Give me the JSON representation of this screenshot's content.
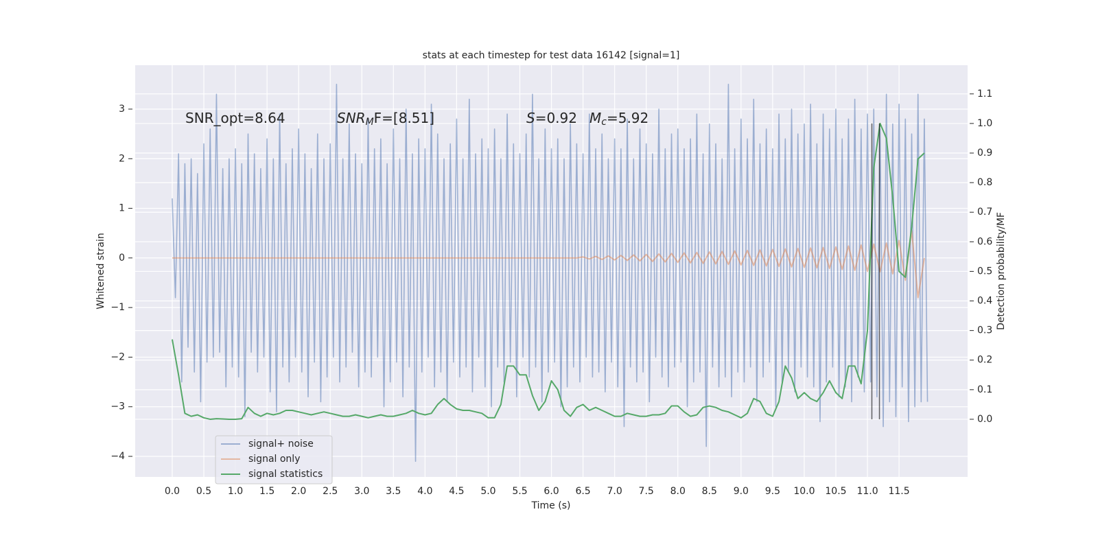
{
  "chart_data": {
    "type": "line",
    "title": "stats at each timestep for test data 16142 [signal=1]",
    "xlabel": "Time (s)",
    "ylabel": "Whitened strain",
    "y2label": "Detection probability/MF",
    "annotations": [
      [
        "SNR_opt=8.64"
      ],
      [
        "SNR",
        "M",
        "F=[8.51]"
      ],
      [
        "S",
        "=0.92"
      ],
      [
        "M",
        "c",
        "=5.92"
      ]
    ],
    "xlim": [
      -0.586,
      12.585
    ],
    "ylim": [
      -4.415,
      3.885
    ],
    "y2lim": [
      -0.195,
      1.197
    ],
    "xticks": [
      {
        "value": 0,
        "label": "0.0"
      },
      0.5,
      {
        "value": 1,
        "label": "1.0"
      },
      1.5,
      {
        "value": 2,
        "label": "2.0"
      },
      2.5,
      {
        "value": 3,
        "label": "3.0"
      },
      3.5,
      {
        "value": 4,
        "label": "4.0"
      },
      4.5,
      {
        "value": 5,
        "label": "5.0"
      },
      5.5,
      {
        "value": 6,
        "label": "6.0"
      },
      6.5,
      {
        "value": 7,
        "label": "7.0"
      },
      7.5,
      {
        "value": 8,
        "label": "8.0"
      },
      8.5,
      {
        "value": 9,
        "label": "9.0"
      },
      9.5,
      {
        "value": 10,
        "label": "10.0"
      },
      10.5,
      {
        "value": 11,
        "label": "11.0"
      },
      11.5
    ],
    "yticks": [
      {
        "value": -4,
        "label": "−4"
      },
      {
        "value": -3,
        "label": "−3"
      },
      {
        "value": -2,
        "label": "−2"
      },
      {
        "value": -1,
        "label": "−1"
      },
      0,
      1,
      2,
      3
    ],
    "y2ticks": [
      {
        "value": 0,
        "label": "0.0"
      },
      0.1,
      0.2,
      0.3,
      0.4,
      0.5,
      0.6,
      0.7,
      0.8,
      0.9,
      {
        "value": 1,
        "label": "1.0"
      },
      1.1
    ],
    "grid": true,
    "legend": "lower left",
    "vlines": [
      11.07,
      11.19
    ],
    "series": [
      {
        "name": "signal+ noise",
        "color": "#4c72b0",
        "x": [
          0,
          0.05,
          0.1,
          0.15,
          0.2,
          0.25,
          0.3,
          0.35,
          0.4,
          0.45,
          0.5,
          0.55,
          0.6,
          0.65,
          0.7,
          0.75,
          0.8,
          0.85,
          0.9,
          0.95,
          1,
          1.05,
          1.1,
          1.15,
          1.2,
          1.25,
          1.3,
          1.35,
          1.4,
          1.45,
          1.5,
          1.55,
          1.6,
          1.65,
          1.7,
          1.75,
          1.8,
          1.85,
          1.9,
          1.95,
          2,
          2.05,
          2.1,
          2.15,
          2.2,
          2.25,
          2.3,
          2.35,
          2.4,
          2.45,
          2.5,
          2.55,
          2.6,
          2.65,
          2.7,
          2.75,
          2.8,
          2.85,
          2.9,
          2.95,
          3,
          3.05,
          3.1,
          3.15,
          3.2,
          3.25,
          3.3,
          3.35,
          3.4,
          3.45,
          3.5,
          3.55,
          3.6,
          3.65,
          3.7,
          3.75,
          3.8,
          3.85,
          3.9,
          3.95,
          4,
          4.05,
          4.1,
          4.15,
          4.2,
          4.25,
          4.3,
          4.35,
          4.4,
          4.45,
          4.5,
          4.55,
          4.6,
          4.65,
          4.7,
          4.75,
          4.8,
          4.85,
          4.9,
          4.95,
          5,
          5.05,
          5.1,
          5.15,
          5.2,
          5.25,
          5.3,
          5.35,
          5.4,
          5.45,
          5.5,
          5.55,
          5.6,
          5.65,
          5.7,
          5.75,
          5.8,
          5.85,
          5.9,
          5.95,
          6,
          6.05,
          6.1,
          6.15,
          6.2,
          6.25,
          6.3,
          6.35,
          6.4,
          6.45,
          6.5,
          6.55,
          6.6,
          6.65,
          6.7,
          6.75,
          6.8,
          6.85,
          6.9,
          6.95,
          7,
          7.05,
          7.1,
          7.15,
          7.2,
          7.25,
          7.3,
          7.35,
          7.4,
          7.45,
          7.5,
          7.55,
          7.6,
          7.65,
          7.7,
          7.75,
          7.8,
          7.85,
          7.9,
          7.95,
          8,
          8.05,
          8.1,
          8.15,
          8.2,
          8.25,
          8.3,
          8.35,
          8.4,
          8.45,
          8.5,
          8.55,
          8.6,
          8.65,
          8.7,
          8.75,
          8.8,
          8.85,
          8.9,
          8.95,
          9,
          9.05,
          9.1,
          9.15,
          9.2,
          9.25,
          9.3,
          9.35,
          9.4,
          9.45,
          9.5,
          9.55,
          9.6,
          9.65,
          9.7,
          9.75,
          9.8,
          9.85,
          9.9,
          9.95,
          10,
          10.05,
          10.1,
          10.15,
          10.2,
          10.25,
          10.3,
          10.35,
          10.4,
          10.45,
          10.5,
          10.55,
          10.6,
          10.65,
          10.7,
          10.75,
          10.8,
          10.85,
          10.9,
          10.95,
          11,
          11.05,
          11.1,
          11.15,
          11.2,
          11.25,
          11.3,
          11.35,
          11.4,
          11.45,
          11.5,
          11.55,
          11.6,
          11.65,
          11.7,
          11.75,
          11.8,
          11.85,
          11.9,
          11.95
        ],
        "values": [
          1.2,
          -0.8,
          2.1,
          -2.5,
          1.9,
          -1.8,
          2.0,
          -2.3,
          1.7,
          -2.9,
          2.3,
          -2.1,
          2.6,
          -2.0,
          3.3,
          -1.9,
          1.8,
          -2.6,
          2.0,
          -2.2,
          2.2,
          -2.4,
          1.9,
          -3.2,
          2.5,
          -1.9,
          2.1,
          -2.3,
          1.8,
          -2.0,
          2.4,
          -2.7,
          2.0,
          -3.1,
          2.9,
          -2.2,
          1.9,
          -2.5,
          2.2,
          -2.0,
          2.6,
          -2.3,
          2.1,
          -2.8,
          1.8,
          -2.1,
          2.5,
          -2.9,
          2.0,
          -2.4,
          2.3,
          -2.0,
          3.5,
          -2.5,
          2.0,
          -2.2,
          2.7,
          -1.9,
          2.1,
          -2.6,
          1.9,
          -2.3,
          2.8,
          -2.4,
          2.2,
          -2.0,
          2.4,
          -3.0,
          1.9,
          -2.5,
          2.6,
          -2.1,
          2.0,
          -2.8,
          3.0,
          -2.2,
          2.1,
          -4.1,
          2.4,
          -2.3,
          2.2,
          -2.0,
          3.1,
          -2.6,
          2.5,
          -2.3,
          2.0,
          -2.9,
          2.3,
          -2.1,
          2.8,
          -2.4,
          2.0,
          -2.2,
          3.2,
          -2.7,
          2.1,
          -2.0,
          2.4,
          -2.6,
          2.2,
          -3.0,
          2.6,
          -2.2,
          2.0,
          -2.5,
          2.9,
          -2.1,
          2.3,
          -2.8,
          2.1,
          -2.0,
          2.5,
          -2.4,
          3.3,
          -2.2,
          2.0,
          -2.9,
          2.6,
          -2.3,
          2.2,
          -2.1,
          2.4,
          -3.0,
          2.0,
          -2.6,
          2.7,
          -2.2,
          2.3,
          -2.5,
          2.1,
          -2.0,
          2.9,
          -2.4,
          2.2,
          -2.3,
          2.5,
          -2.7,
          2.0,
          -2.1,
          2.4,
          -2.6,
          2.2,
          -3.4,
          2.8,
          -2.2,
          2.0,
          -2.5,
          2.6,
          -2.3,
          2.3,
          -2.9,
          2.1,
          -2.0,
          3.0,
          -2.4,
          2.2,
          -2.6,
          2.5,
          -2.2,
          2.6,
          -2.1,
          2.2,
          -3.0,
          2.4,
          -2.5,
          2.9,
          -2.3,
          2.1,
          -3.8,
          2.7,
          -2.2,
          2.3,
          -2.6,
          2.0,
          -2.4,
          3.5,
          -2.8,
          2.2,
          -2.3,
          2.8,
          -2.5,
          2.4,
          -2.2,
          3.2,
          -2.9,
          2.3,
          -2.4,
          2.6,
          -2.1,
          2.2,
          -3.0,
          2.9,
          -2.5,
          2.4,
          -2.3,
          3.0,
          -2.7,
          2.5,
          -2.2,
          2.7,
          -2.4,
          3.1,
          -2.6,
          2.3,
          -3.3,
          2.9,
          -2.5,
          2.6,
          -2.2,
          3.0,
          -2.8,
          2.4,
          -2.6,
          2.8,
          -2.9,
          3.2,
          -2.4,
          2.6,
          -2.7,
          2.9,
          -2.5,
          3.0,
          -2.8,
          2.6,
          -3.4,
          3.3,
          -2.9,
          2.7,
          -3.2,
          3.1,
          -2.6,
          2.8,
          -3.3,
          2.5,
          -3.0,
          3.3,
          -2.9,
          2.8,
          -2.9
        ]
      },
      {
        "name": "signal only",
        "color": "#dd8452",
        "x": [
          0,
          0.1,
          0.2,
          0.3,
          0.4,
          0.5,
          0.6,
          0.7,
          0.8,
          0.9,
          1,
          1.1,
          1.2,
          1.3,
          1.4,
          1.5,
          1.6,
          1.7,
          1.8,
          1.9,
          2,
          2.1,
          2.2,
          2.3,
          2.4,
          2.5,
          2.6,
          2.7,
          2.8,
          2.9,
          3,
          3.1,
          3.2,
          3.3,
          3.4,
          3.5,
          3.6,
          3.7,
          3.8,
          3.9,
          4,
          4.1,
          4.2,
          4.3,
          4.4,
          4.5,
          4.6,
          4.7,
          4.8,
          4.9,
          5,
          5.1,
          5.2,
          5.3,
          5.4,
          5.5,
          5.6,
          5.7,
          5.8,
          5.9,
          6,
          6.1,
          6.2,
          6.3,
          6.4,
          6.5,
          6.6,
          6.7,
          6.8,
          6.9,
          7,
          7.1,
          7.2,
          7.3,
          7.4,
          7.5,
          7.6,
          7.7,
          7.8,
          7.9,
          8,
          8.1,
          8.2,
          8.3,
          8.4,
          8.5,
          8.6,
          8.7,
          8.8,
          8.9,
          9,
          9.1,
          9.2,
          9.3,
          9.4,
          9.5,
          9.6,
          9.7,
          9.8,
          9.9,
          10,
          10.1,
          10.2,
          10.3,
          10.4,
          10.5,
          10.6,
          10.7,
          10.8,
          10.9,
          11,
          11.1,
          11.2,
          11.3,
          11.4,
          11.5,
          11.6,
          11.7,
          11.8,
          11.9
        ],
        "values": [
          0,
          0,
          0,
          0,
          0,
          0,
          0,
          0,
          0,
          0,
          0,
          0,
          0,
          0,
          0,
          0,
          0,
          0,
          0,
          0,
          0,
          0,
          0,
          0,
          0,
          0,
          0,
          0,
          0,
          0,
          0,
          0,
          0,
          0,
          0,
          0,
          0,
          0,
          0,
          0,
          0,
          0,
          0,
          0,
          0,
          0,
          0,
          0,
          0,
          0,
          0,
          0,
          0,
          0,
          0,
          0,
          0,
          0,
          0,
          0,
          0,
          0,
          0,
          0,
          0,
          0.02,
          -0.02,
          0.03,
          -0.03,
          0.04,
          -0.04,
          0.05,
          -0.05,
          0.06,
          -0.06,
          0.07,
          -0.07,
          0.08,
          -0.08,
          0.09,
          -0.09,
          0.1,
          -0.1,
          0.11,
          -0.11,
          0.12,
          -0.12,
          0.13,
          -0.13,
          0.14,
          -0.14,
          0.15,
          -0.15,
          0.16,
          -0.16,
          0.17,
          -0.17,
          0.18,
          -0.18,
          0.19,
          -0.19,
          0.2,
          -0.2,
          0.21,
          -0.21,
          0.22,
          -0.23,
          0.24,
          -0.25,
          0.26,
          -0.27,
          0.28,
          -0.28,
          0.3,
          -0.32,
          0.35,
          -0.45,
          0.55,
          -0.8,
          0
        ]
      },
      {
        "name": "signal statistics",
        "color": "#55a868",
        "axis": "y2",
        "x": [
          0,
          0.1,
          0.2,
          0.3,
          0.4,
          0.5,
          0.6,
          0.7,
          0.8,
          0.9,
          1,
          1.1,
          1.2,
          1.3,
          1.4,
          1.5,
          1.6,
          1.7,
          1.8,
          1.9,
          2,
          2.1,
          2.2,
          2.3,
          2.4,
          2.5,
          2.6,
          2.7,
          2.8,
          2.9,
          3,
          3.1,
          3.2,
          3.3,
          3.4,
          3.5,
          3.6,
          3.7,
          3.8,
          3.9,
          4,
          4.1,
          4.2,
          4.3,
          4.4,
          4.5,
          4.6,
          4.7,
          4.8,
          4.9,
          5,
          5.1,
          5.2,
          5.3,
          5.4,
          5.5,
          5.6,
          5.7,
          5.8,
          5.9,
          6,
          6.1,
          6.2,
          6.3,
          6.4,
          6.5,
          6.6,
          6.7,
          6.8,
          6.9,
          7,
          7.1,
          7.2,
          7.3,
          7.4,
          7.5,
          7.6,
          7.7,
          7.8,
          7.9,
          8,
          8.1,
          8.2,
          8.3,
          8.4,
          8.5,
          8.6,
          8.7,
          8.8,
          8.9,
          9,
          9.1,
          9.2,
          9.3,
          9.4,
          9.5,
          9.6,
          9.7,
          9.8,
          9.9,
          10,
          10.1,
          10.2,
          10.3,
          10.4,
          10.5,
          10.6,
          10.7,
          10.8,
          10.9,
          11,
          11.1,
          11.2,
          11.3,
          11.4,
          11.5,
          11.6,
          11.7,
          11.8,
          11.9
        ],
        "values": [
          0.27,
          0.15,
          0.02,
          0.01,
          0.015,
          0.005,
          0,
          0.002,
          0.001,
          0,
          0,
          0.002,
          0.04,
          0.02,
          0.01,
          0.02,
          0.015,
          0.02,
          0.03,
          0.03,
          0.025,
          0.02,
          0.015,
          0.02,
          0.025,
          0.02,
          0.015,
          0.01,
          0.01,
          0.015,
          0.01,
          0.005,
          0.01,
          0.015,
          0.01,
          0.01,
          0.015,
          0.02,
          0.03,
          0.02,
          0.015,
          0.02,
          0.05,
          0.07,
          0.05,
          0.035,
          0.03,
          0.03,
          0.025,
          0.02,
          0.005,
          0.005,
          0.05,
          0.18,
          0.18,
          0.15,
          0.15,
          0.08,
          0.03,
          0.06,
          0.13,
          0.1,
          0.03,
          0.01,
          0.04,
          0.05,
          0.03,
          0.04,
          0.03,
          0.02,
          0.01,
          0.01,
          0.02,
          0.015,
          0.01,
          0.01,
          0.015,
          0.015,
          0.02,
          0.045,
          0.045,
          0.025,
          0.01,
          0.015,
          0.04,
          0.045,
          0.04,
          0.03,
          0.025,
          0.015,
          0.005,
          0.02,
          0.07,
          0.06,
          0.02,
          0.01,
          0.06,
          0.18,
          0.14,
          0.07,
          0.09,
          0.07,
          0.06,
          0.09,
          0.13,
          0.09,
          0.07,
          0.18,
          0.18,
          0.12,
          0.3,
          0.85,
          1.0,
          0.95,
          0.75,
          0.5,
          0.48,
          0.65,
          0.88,
          0.9
        ]
      }
    ]
  }
}
